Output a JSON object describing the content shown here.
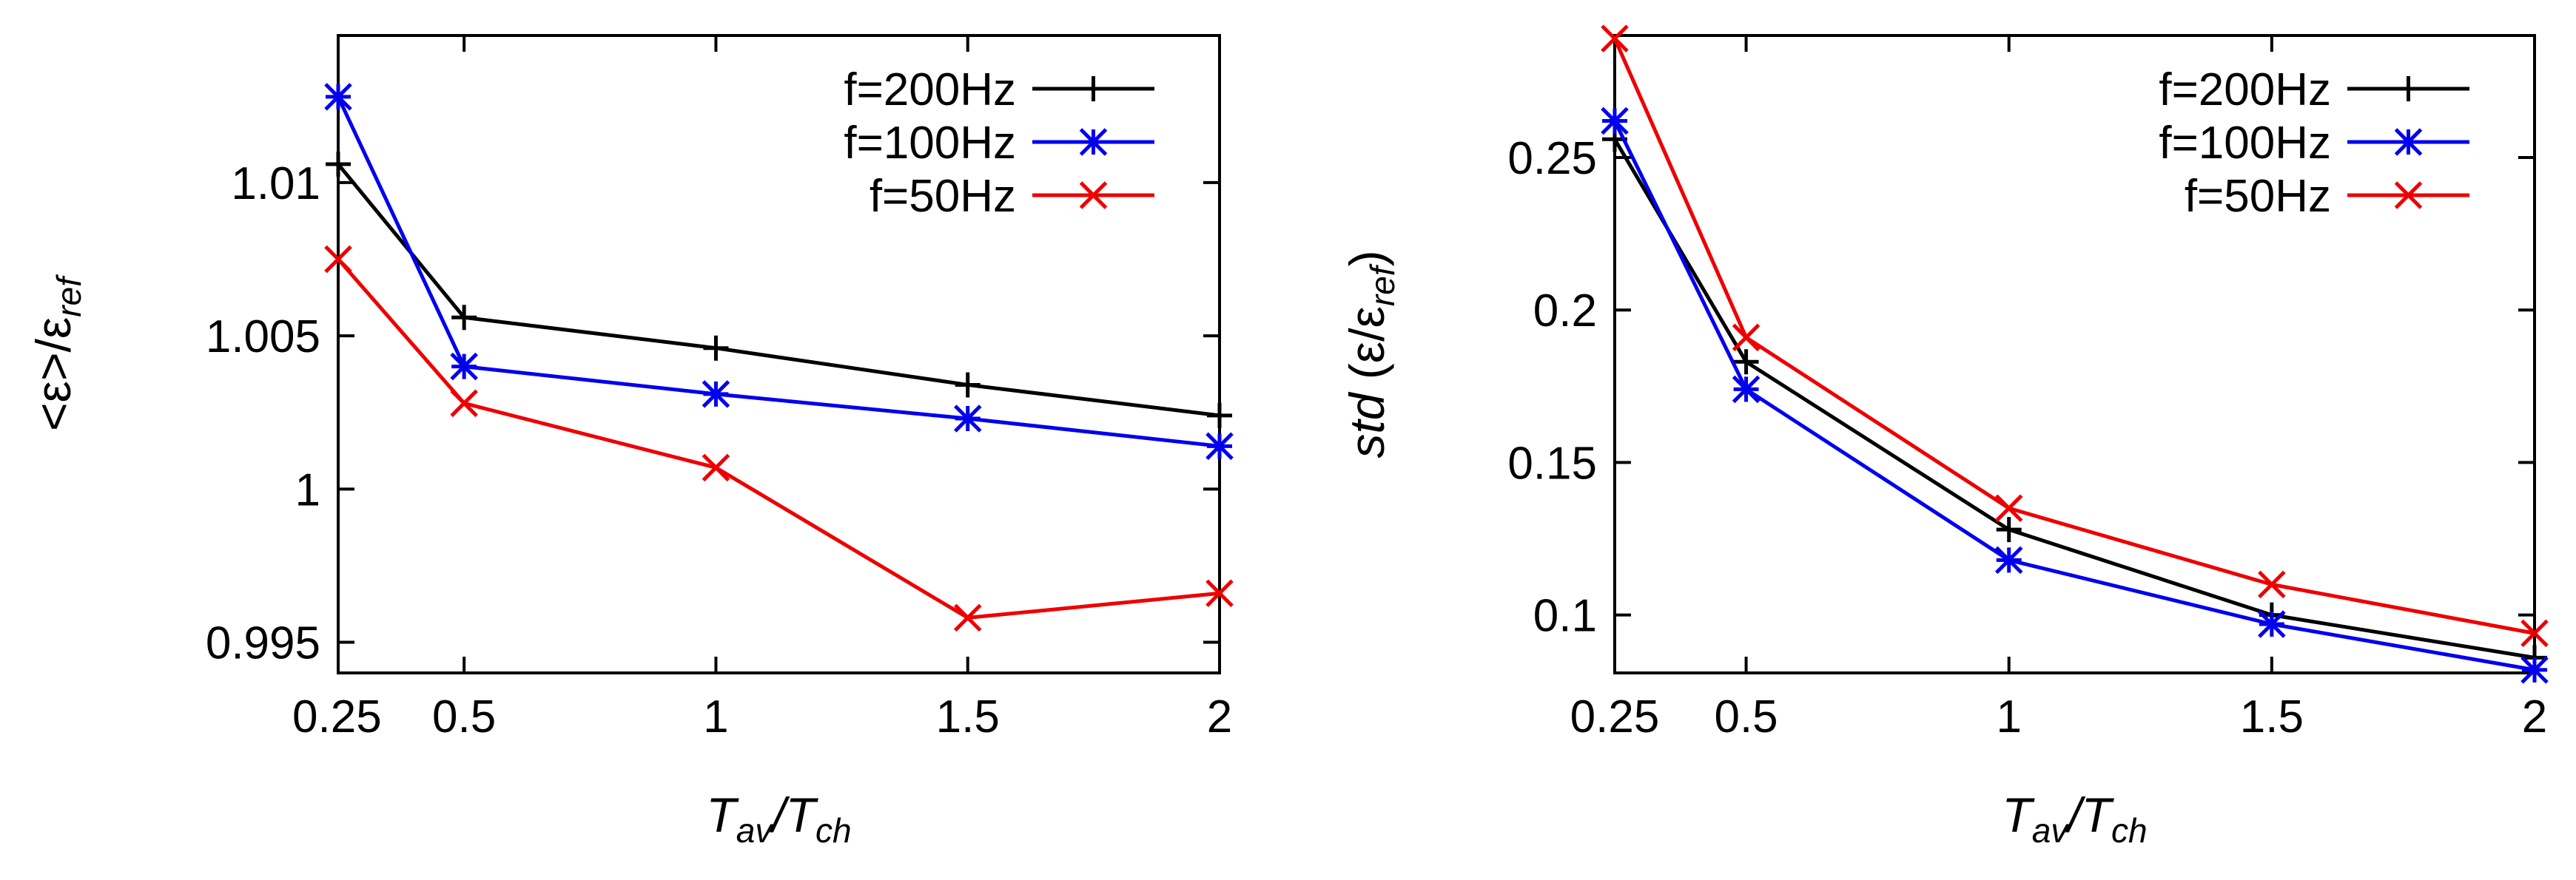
{
  "chart_data": [
    {
      "type": "line",
      "xlabel": "T_av/T_ch",
      "ylabel": "<ε>/ε_ref",
      "x": [
        0.25,
        0.5,
        1,
        1.5,
        2
      ],
      "xticks": [
        "0.25",
        "0.5",
        "1",
        "1.5",
        "2"
      ],
      "yticks": [
        "0.995",
        "1",
        "1.005",
        "1.01"
      ],
      "ylim": [
        0.994,
        1.0148
      ],
      "legend_position": "top-right",
      "series": [
        {
          "name": "f=200Hz",
          "color": "#000000",
          "marker": "plus",
          "values": [
            1.0106,
            1.0056,
            1.0046,
            1.0034,
            1.0024
          ]
        },
        {
          "name": "f=100Hz",
          "color": "#0000ee",
          "marker": "asterisk",
          "values": [
            1.0128,
            1.004,
            1.0031,
            1.0023,
            1.0014
          ]
        },
        {
          "name": "f=50Hz",
          "color": "#ee0000",
          "marker": "cross",
          "values": [
            1.0075,
            1.0028,
            1.0007,
            0.9958,
            0.9966
          ]
        }
      ]
    },
    {
      "type": "line",
      "xlabel": "T_av/T_ch",
      "ylabel": "std (ε/ε_ref)",
      "x": [
        0.25,
        0.5,
        1,
        1.5,
        2
      ],
      "xticks": [
        "0.25",
        "0.5",
        "1",
        "1.5",
        "2"
      ],
      "yticks": [
        "0.1",
        "0.15",
        "0.2",
        "0.25"
      ],
      "ylim": [
        0.081,
        0.29
      ],
      "legend_position": "top-right",
      "series": [
        {
          "name": "f=200Hz",
          "color": "#000000",
          "marker": "plus",
          "values": [
            0.256,
            0.183,
            0.128,
            0.1,
            0.086
          ]
        },
        {
          "name": "f=100Hz",
          "color": "#0000ee",
          "marker": "asterisk",
          "values": [
            0.262,
            0.174,
            0.118,
            0.097,
            0.082
          ]
        },
        {
          "name": "f=50Hz",
          "color": "#ee0000",
          "marker": "cross",
          "values": [
            0.289,
            0.191,
            0.135,
            0.11,
            0.094
          ]
        }
      ]
    }
  ]
}
